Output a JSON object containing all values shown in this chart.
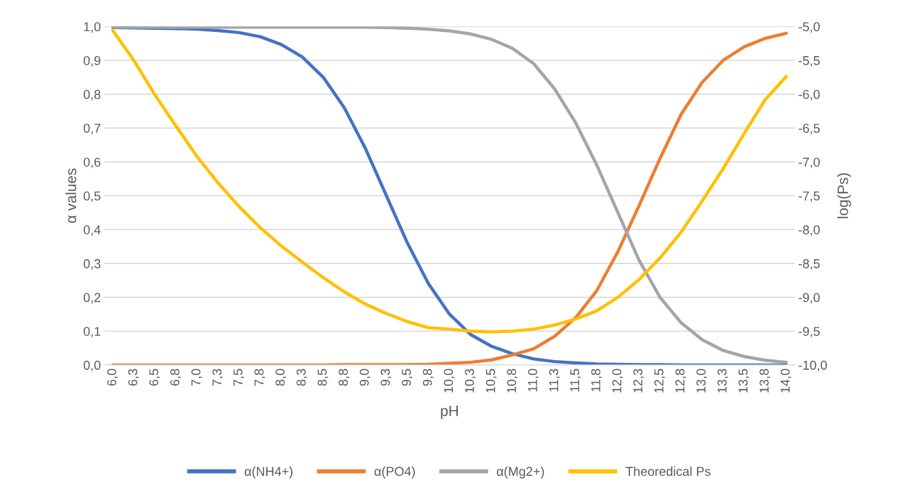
{
  "chart_data": {
    "type": "line",
    "xlabel": "pH",
    "ylabel": "α values",
    "y2label": "log(Ps)",
    "categories": [
      "6,0",
      "6,3",
      "6,5",
      "6,8",
      "7,0",
      "7,3",
      "7,5",
      "7,8",
      "8,0",
      "8,3",
      "8,5",
      "8,8",
      "9,0",
      "9,3",
      "9,5",
      "9,8",
      "10,0",
      "10,3",
      "10,5",
      "10,8",
      "11,0",
      "11,3",
      "11,5",
      "11,8",
      "12,0",
      "12,3",
      "12,5",
      "12,8",
      "13,0",
      "13,3",
      "13,5",
      "13,8",
      "14,0"
    ],
    "series": [
      {
        "name": "α(NH4+)",
        "color": "#4472c4",
        "values": [
          0.997,
          0.996,
          0.995,
          0.994,
          0.992,
          0.988,
          0.982,
          0.97,
          0.947,
          0.91,
          0.85,
          0.76,
          0.64,
          0.5,
          0.36,
          0.24,
          0.15,
          0.09,
          0.055,
          0.033,
          0.018,
          0.01,
          0.006,
          0.003,
          0.002,
          0.001,
          0.001,
          0,
          0,
          0,
          0,
          0,
          0
        ]
      },
      {
        "name": "α(PO4)",
        "color": "#ed7d31",
        "values": [
          0,
          0,
          0,
          0,
          0,
          0,
          0,
          0,
          0,
          0,
          0,
          0.001,
          0.001,
          0.001,
          0.001,
          0.002,
          0.005,
          0.008,
          0.015,
          0.03,
          0.048,
          0.085,
          0.14,
          0.22,
          0.335,
          0.47,
          0.61,
          0.74,
          0.835,
          0.9,
          0.94,
          0.965,
          0.98
        ]
      },
      {
        "name": "α(Mg2+)",
        "color": "#a5a5a5",
        "values": [
          0.998,
          0.998,
          0.998,
          0.998,
          0.998,
          0.998,
          0.998,
          0.998,
          0.998,
          0.998,
          0.998,
          0.998,
          0.998,
          0.997,
          0.995,
          0.992,
          0.987,
          0.978,
          0.962,
          0.935,
          0.89,
          0.815,
          0.715,
          0.59,
          0.45,
          0.31,
          0.2,
          0.125,
          0.075,
          0.043,
          0.025,
          0.014,
          0.008
        ]
      },
      {
        "name": "Theoredical Ps",
        "color": "#ffc000",
        "axis": "y2",
        "values": [
          -5.06,
          -5.5,
          -6.01,
          -6.47,
          -6.92,
          -7.31,
          -7.66,
          -7.97,
          -8.24,
          -8.48,
          -8.71,
          -8.92,
          -9.1,
          -9.24,
          -9.36,
          -9.45,
          -9.47,
          -9.5,
          -9.51,
          -9.5,
          -9.47,
          -9.41,
          -9.32,
          -9.2,
          -9.0,
          -8.74,
          -8.42,
          -8.04,
          -7.58,
          -7.1,
          -6.58,
          -6.08,
          -5.74
        ]
      }
    ],
    "ylim": [
      0,
      1
    ],
    "yticks": [
      {
        "value": 0,
        "label": "0,0"
      },
      {
        "value": 0.1,
        "label": "0,1"
      },
      {
        "value": 0.2,
        "label": "0,2"
      },
      {
        "value": 0.3,
        "label": "0,3"
      },
      {
        "value": 0.4,
        "label": "0,4"
      },
      {
        "value": 0.5,
        "label": "0,5"
      },
      {
        "value": 0.6,
        "label": "0,6"
      },
      {
        "value": 0.7,
        "label": "0,7"
      },
      {
        "value": 0.8,
        "label": "0,8"
      },
      {
        "value": 0.9,
        "label": "0,9"
      },
      {
        "value": 1,
        "label": "1,0"
      }
    ],
    "y2lim": [
      -10,
      -5
    ],
    "y2ticks": [
      {
        "value": -10,
        "label": "-10,0"
      },
      {
        "value": -9.5,
        "label": "-9,5"
      },
      {
        "value": -9,
        "label": "-9,0"
      },
      {
        "value": -8.5,
        "label": "-8,5"
      },
      {
        "value": -8,
        "label": "-8,0"
      },
      {
        "value": -7.5,
        "label": "-7,5"
      },
      {
        "value": -7,
        "label": "-7,0"
      },
      {
        "value": -6.5,
        "label": "-6,5"
      },
      {
        "value": -6,
        "label": "-6,0"
      },
      {
        "value": -5.5,
        "label": "-5,5"
      },
      {
        "value": -5,
        "label": "-5,0"
      }
    ],
    "grid": "y",
    "legend": "bottom",
    "marker": "none",
    "line_style": "solid"
  }
}
